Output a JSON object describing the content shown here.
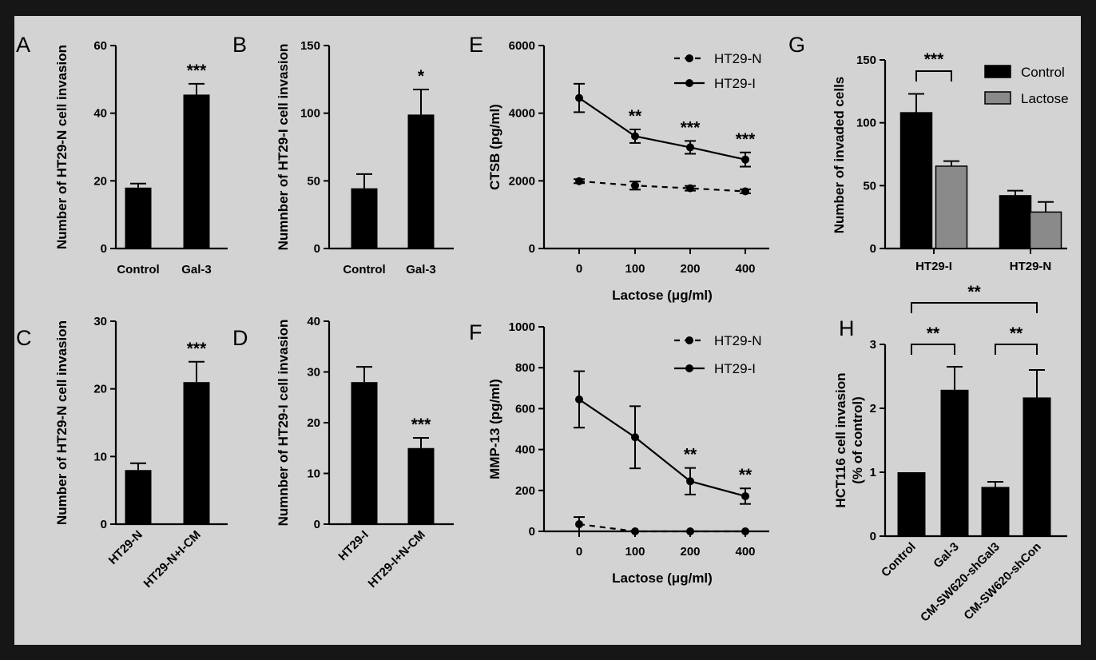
{
  "chart_data": [
    {
      "panel": "A",
      "type": "bar",
      "categories": [
        "Control",
        "Gal-3"
      ],
      "values": [
        18,
        45.5
      ],
      "errors": [
        1.2,
        3.2
      ],
      "ylabel": "Number of HT29-N cell invasion",
      "ylim": [
        0,
        60
      ],
      "yticks": [
        0,
        20,
        40,
        60
      ],
      "annotations": [
        {
          "category": 1,
          "text": "***"
        }
      ]
    },
    {
      "panel": "B",
      "type": "bar",
      "categories": [
        "Control",
        "Gal-3"
      ],
      "values": [
        44.5,
        99
      ],
      "errors": [
        10.5,
        18.5
      ],
      "ylabel": "Numnber of HT29-I cell invasion",
      "ylim": [
        0,
        150
      ],
      "yticks": [
        0,
        50,
        100,
        150
      ],
      "annotations": [
        {
          "category": 1,
          "text": "*"
        }
      ]
    },
    {
      "panel": "C",
      "type": "bar",
      "categories": [
        "HT29-N",
        "HT29-N+I-CM"
      ],
      "values": [
        8,
        21
      ],
      "errors": [
        1,
        3
      ],
      "ylabel": "Number of HT29-N cell invasion",
      "ylim": [
        0,
        30
      ],
      "yticks": [
        0,
        10,
        20,
        30
      ],
      "annotations": [
        {
          "category": 1,
          "text": "***"
        }
      ]
    },
    {
      "panel": "D",
      "type": "bar",
      "categories": [
        "HT29-I",
        "HT29-I+N-CM"
      ],
      "values": [
        28,
        15
      ],
      "errors": [
        3,
        2
      ],
      "ylabel": "Numnber of HT29-I cell invasion",
      "ylim": [
        0,
        40
      ],
      "yticks": [
        0,
        10,
        20,
        30,
        40
      ],
      "annotations": [
        {
          "category": 1,
          "text": "***"
        }
      ]
    },
    {
      "panel": "E",
      "type": "line",
      "x": [
        0,
        100,
        200,
        400
      ],
      "series": [
        {
          "name": "HT29-N",
          "values": [
            1990,
            1860,
            1780,
            1690
          ],
          "errors": [
            60,
            120,
            70,
            60
          ],
          "style": "dashed"
        },
        {
          "name": "HT29-I",
          "values": [
            4450,
            3320,
            2990,
            2630
          ],
          "errors": [
            420,
            200,
            190,
            210
          ],
          "style": "solid"
        }
      ],
      "xlabel": "Lactose (μg/ml)",
      "ylabel": "CTSB (pg/ml)",
      "ylim": [
        0,
        6000
      ],
      "yticks": [
        0,
        2000,
        4000,
        6000
      ],
      "annotations": [
        {
          "x": 100,
          "text": "**"
        },
        {
          "x": 200,
          "text": "***"
        },
        {
          "x": 400,
          "text": "***"
        }
      ]
    },
    {
      "panel": "F",
      "type": "line",
      "x": [
        0,
        100,
        200,
        400
      ],
      "series": [
        {
          "name": "HT29-N",
          "values": [
            35,
            0,
            0,
            0
          ],
          "errors": [
            35,
            0,
            0,
            0
          ],
          "style": "dashed"
        },
        {
          "name": "HT29-I",
          "values": [
            645,
            460,
            245,
            172
          ],
          "errors": [
            138,
            152,
            65,
            38
          ],
          "style": "solid"
        }
      ],
      "xlabel": "Lactose (μg/ml)",
      "ylabel": "MMP-13 (pg/ml)",
      "ylim": [
        0,
        1000
      ],
      "yticks": [
        0,
        200,
        400,
        600,
        800,
        1000
      ],
      "annotations": [
        {
          "x": 200,
          "text": "**"
        },
        {
          "x": 400,
          "text": "**"
        }
      ]
    },
    {
      "panel": "G",
      "type": "bar",
      "categories": [
        "HT29-I",
        "HT29-N"
      ],
      "series": [
        {
          "name": "Control",
          "values": [
            108,
            42
          ],
          "errors": [
            15,
            4
          ],
          "color": "#000000"
        },
        {
          "name": "Lactose",
          "values": [
            65.5,
            29
          ],
          "errors": [
            4,
            8
          ],
          "color": "#8a8a8a"
        }
      ],
      "ylabel": "Number of invaded cells",
      "ylim": [
        0,
        150
      ],
      "yticks": [
        0,
        50,
        100,
        150
      ],
      "legend": "top-right",
      "annotations": [
        {
          "text": "***",
          "between": "HT29-I Control and HT29-I Lactose"
        }
      ]
    },
    {
      "panel": "H",
      "type": "bar",
      "categories": [
        "Control",
        "Gal-3",
        "CM-SW620-shGal3",
        "CM-SW620-shCon"
      ],
      "values": [
        1,
        2.29,
        0.77,
        2.17
      ],
      "errors": [
        0,
        0.36,
        0.08,
        0.43
      ],
      "ylabel": [
        "HCT116 cell invasion",
        "(% of control)"
      ],
      "ylim": [
        0,
        3
      ],
      "yticks": [
        0,
        1,
        2,
        3
      ],
      "annotations": [
        {
          "text": "**",
          "between": "Control and Gal-3"
        },
        {
          "text": "**",
          "between": "CM-SW620-shGal3 and CM-SW620-shCon"
        },
        {
          "text": "**",
          "between": "Control and CM-SW620-shCon"
        }
      ]
    }
  ]
}
